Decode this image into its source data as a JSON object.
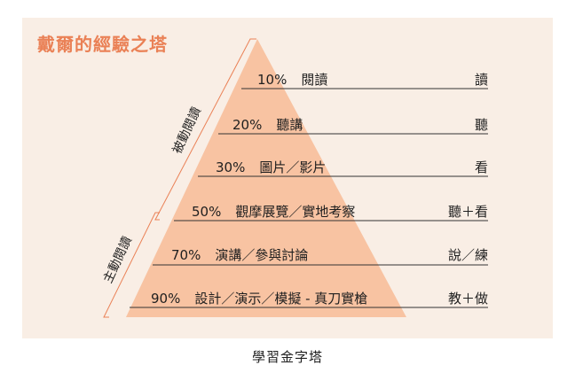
{
  "title": "戴爾的經驗之塔",
  "side_labels": {
    "passive": "被動閱讀",
    "active": "主動閱讀"
  },
  "rows": [
    {
      "percent": "10%",
      "activity": "閱讀",
      "sense": "讀"
    },
    {
      "percent": "20%",
      "activity": "聽講",
      "sense": "聽"
    },
    {
      "percent": "30%",
      "activity": "圖片／影片",
      "sense": "看"
    },
    {
      "percent": "50%",
      "activity": "觀摩展覽／實地考察",
      "sense": "聽＋看"
    },
    {
      "percent": "70%",
      "activity": "演講／參與討論",
      "sense": "說／練"
    },
    {
      "percent": "90%",
      "activity": "設計／演示／模擬 - 真刀實槍",
      "sense": "教＋做"
    }
  ],
  "caption": "學習金字塔",
  "colors": {
    "panel": "#f9eee5",
    "pyramid": "#f8c3a2",
    "accent": "#ea8156",
    "rule": "#333333"
  }
}
